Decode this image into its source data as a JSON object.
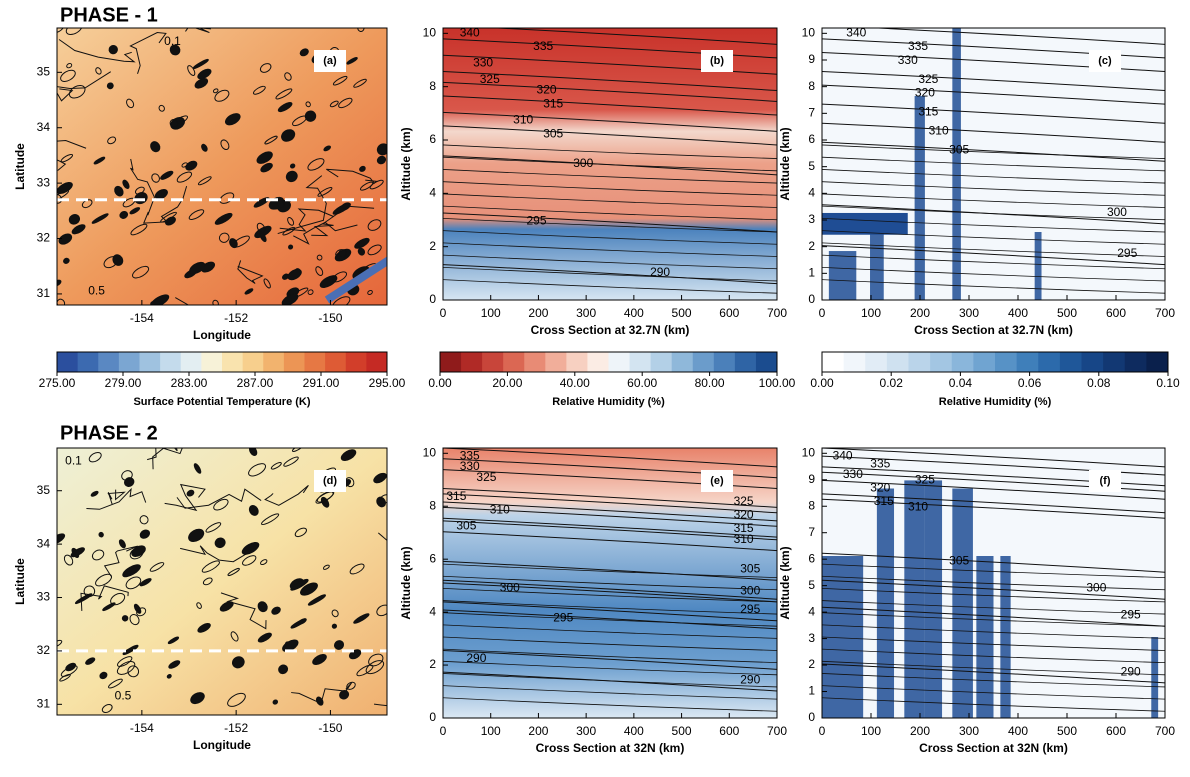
{
  "phase_labels": [
    "PHASE - 1",
    "PHASE - 2"
  ],
  "panels": [
    {
      "tag": "(a)",
      "xlabel": "Longitude",
      "ylabel": "Latitude",
      "xlim": [
        -155.8,
        -148.8
      ],
      "xticks": [
        -154,
        -152,
        -150
      ],
      "ylim": [
        30.8,
        35.8
      ],
      "yticks": [
        31,
        32,
        33,
        34,
        35
      ],
      "cross_section_lat": 32.7,
      "contour_labels": [
        0.1,
        0.5
      ]
    },
    {
      "tag": "(b)",
      "xlabel": "Cross Section at 32.7N (km)",
      "ylabel": "Altitude (km)",
      "xlim": [
        0,
        700
      ],
      "xticks": [
        0,
        100,
        200,
        300,
        400,
        500,
        600,
        700
      ],
      "ylim": [
        0,
        10.2
      ],
      "yticks": [
        0,
        2,
        4,
        6,
        8,
        10
      ],
      "contour_labels": [
        340,
        335,
        330,
        325,
        320,
        315,
        310,
        305,
        300,
        295,
        290
      ]
    },
    {
      "tag": "(c)",
      "xlabel": "Cross Section at 32.7N (km)",
      "ylabel": "Altitude (km)",
      "xlim": [
        0,
        700
      ],
      "xticks": [
        0,
        100,
        200,
        300,
        400,
        500,
        600,
        700
      ],
      "ylim": [
        0,
        10.2
      ],
      "yticks": [
        0,
        1,
        2,
        3,
        4,
        5,
        6,
        7,
        8,
        9,
        10
      ],
      "contour_labels": [
        340,
        335,
        330,
        325,
        320,
        315,
        310,
        305,
        300,
        295
      ]
    },
    {
      "tag": "(d)",
      "xlabel": "Longitude",
      "ylabel": "Latitude",
      "xlim": [
        -155.8,
        -148.8
      ],
      "xticks": [
        -154,
        -152,
        -150
      ],
      "ylim": [
        30.8,
        35.8
      ],
      "yticks": [
        31,
        32,
        33,
        34,
        35
      ],
      "cross_section_lat": 32,
      "contour_labels": [
        0.1,
        0.5
      ]
    },
    {
      "tag": "(e)",
      "xlabel": "Cross Section at 32N (km)",
      "ylabel": "Altitude (km)",
      "xlim": [
        0,
        700
      ],
      "xticks": [
        0,
        100,
        200,
        300,
        400,
        500,
        600,
        700
      ],
      "ylim": [
        0,
        10.2
      ],
      "yticks": [
        0,
        2,
        4,
        6,
        8,
        10
      ],
      "contour_labels": [
        335,
        330,
        325,
        315,
        310,
        305,
        300,
        295,
        290,
        325,
        320,
        315,
        310,
        305,
        300,
        295,
        290
      ]
    },
    {
      "tag": "(f)",
      "xlabel": "Cross Section at 32N (km)",
      "ylabel": "Altitude (km)",
      "xlim": [
        0,
        700
      ],
      "xticks": [
        0,
        100,
        200,
        300,
        400,
        500,
        600,
        700
      ],
      "ylim": [
        0,
        10.2
      ],
      "yticks": [
        0,
        1,
        2,
        3,
        4,
        5,
        6,
        7,
        8,
        9,
        10
      ],
      "contour_labels": [
        340,
        335,
        330,
        325,
        320,
        315,
        310,
        305,
        300,
        295,
        290
      ]
    }
  ],
  "colorbars": [
    {
      "label": "Surface Potential Temperature (K)",
      "ticks": [
        {
          "value": 275,
          "label": "275.00"
        },
        {
          "value": 279,
          "label": "279.00"
        },
        {
          "value": 283,
          "label": "283.00"
        },
        {
          "value": 287,
          "label": "287.00"
        },
        {
          "value": 291,
          "label": "291.00"
        },
        {
          "value": 295,
          "label": "295.00"
        }
      ]
    },
    {
      "label": "Relative Humidity (%)",
      "ticks": [
        {
          "value": 0,
          "label": "0.00"
        },
        {
          "value": 20,
          "label": "20.00"
        },
        {
          "value": 40,
          "label": "40.00"
        },
        {
          "value": 60,
          "label": "60.00"
        },
        {
          "value": 80,
          "label": "80.00"
        },
        {
          "value": 100,
          "label": "100.00"
        }
      ]
    },
    {
      "label": "Relative Humidity (%)",
      "ticks": [
        {
          "value": 0,
          "label": "0.00"
        },
        {
          "value": 0.02,
          "label": "0.02"
        },
        {
          "value": 0.04,
          "label": "0.04"
        },
        {
          "value": 0.06,
          "label": "0.06"
        },
        {
          "value": 0.08,
          "label": "0.08"
        },
        {
          "value": 0.1,
          "label": "0.10"
        }
      ]
    }
  ]
}
